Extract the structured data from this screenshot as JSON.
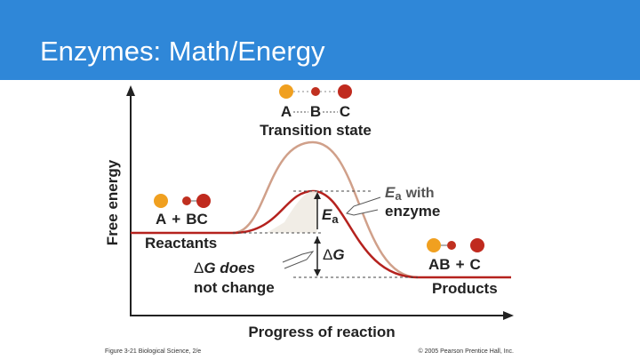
{
  "header": {
    "title": "Enzymes: Math/Energy"
  },
  "diagram": {
    "y_axis_label": "Free energy",
    "x_axis_label": "Progress of reaction",
    "transition_state": {
      "atoms": [
        "A",
        "B",
        "C"
      ],
      "label": "Transition state"
    },
    "enzyme_label": {
      "symbol": "E",
      "subscript": "a",
      "lines": [
        "with",
        "enzyme"
      ]
    },
    "reactants": {
      "formula": [
        "A",
        "+",
        "BC"
      ],
      "label": "Reactants"
    },
    "products": {
      "formula": [
        "AB",
        "+",
        "C"
      ],
      "label": "Products"
    },
    "activation_energy": {
      "symbol": "E",
      "subscript": "a"
    },
    "delta_g": {
      "symbol": "Δ",
      "letter": "G"
    },
    "delta_g_note": {
      "lines": [
        {
          "symbol": "Δ",
          "text": "G does"
        },
        {
          "text": "not change"
        }
      ]
    },
    "footer": {
      "left": "Figure 3-21  Biological Science, 2/e",
      "right": "© 2005 Pearson Prentice Hall, Inc."
    }
  }
}
